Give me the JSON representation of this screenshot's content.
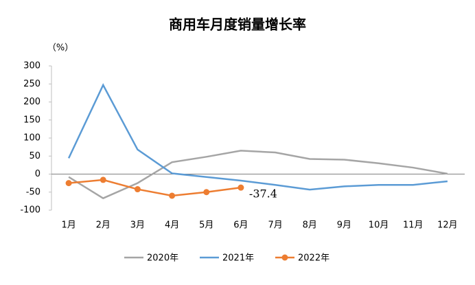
{
  "chart_data": {
    "type": "line",
    "title": "商用车月度销量增长率",
    "y_unit_label": "（%）",
    "categories": [
      "1月",
      "2月",
      "3月",
      "4月",
      "5月",
      "6月",
      "7月",
      "8月",
      "9月",
      "10月",
      "11月",
      "12月"
    ],
    "series": [
      {
        "name": "2020年",
        "color": "#a5a5a5",
        "marker": false,
        "values": [
          -8,
          -67,
          -25,
          33,
          48,
          65,
          60,
          42,
          40,
          30,
          18,
          1
        ]
      },
      {
        "name": "2021年",
        "color": "#5b9bd5",
        "marker": false,
        "values": [
          44,
          247,
          68,
          2,
          -8,
          -18,
          -30,
          -43,
          -34,
          -30,
          -30,
          -20
        ]
      },
      {
        "name": "2022年",
        "color": "#ed7d31",
        "marker": true,
        "values": [
          -25,
          -16,
          -42,
          -60,
          -50,
          -37.4,
          null,
          null,
          null,
          null,
          null,
          null
        ],
        "value_labels": [
          null,
          null,
          null,
          null,
          null,
          "-37.4",
          null,
          null,
          null,
          null,
          null,
          null
        ],
        "value_label_color": "#e0201a"
      }
    ],
    "ylim": [
      -100,
      300
    ],
    "yticks": [
      300,
      250,
      200,
      150,
      100,
      50,
      0,
      -50,
      -100
    ],
    "legend": "bottom"
  }
}
